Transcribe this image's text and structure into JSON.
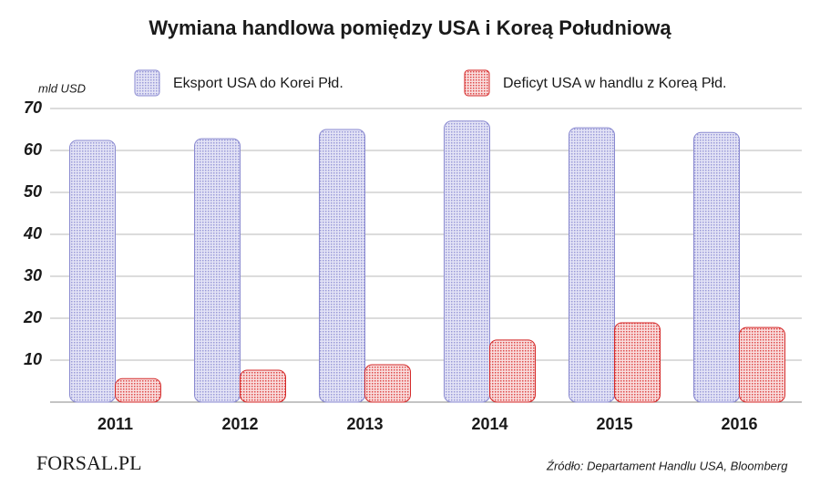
{
  "chart_data": {
    "type": "bar",
    "title": "Wymiana handlowa pomiędzy USA i Koreą Południową",
    "y_label": "mld USD",
    "categories": [
      "2011",
      "2012",
      "2013",
      "2014",
      "2015",
      "2016"
    ],
    "series": [
      {
        "name": "Eksport USA do Korei Płd.",
        "color": "#8a8ad0",
        "values": [
          62.4,
          62.8,
          65,
          67,
          65.4,
          64.3
        ]
      },
      {
        "name": "Deficyt USA w handlu z Koreą Płd.",
        "color": "#d42a2a",
        "values": [
          5.6,
          7.6,
          8.9,
          14.8,
          18.9,
          17.8
        ]
      }
    ],
    "ylim": [
      0,
      70
    ],
    "yticks": [
      10,
      20,
      30,
      40,
      50,
      60,
      70
    ],
    "grid": true,
    "source": "Źródło:  Departament Handlu USA, Bloomberg",
    "logo": "FORSAL.PL"
  }
}
